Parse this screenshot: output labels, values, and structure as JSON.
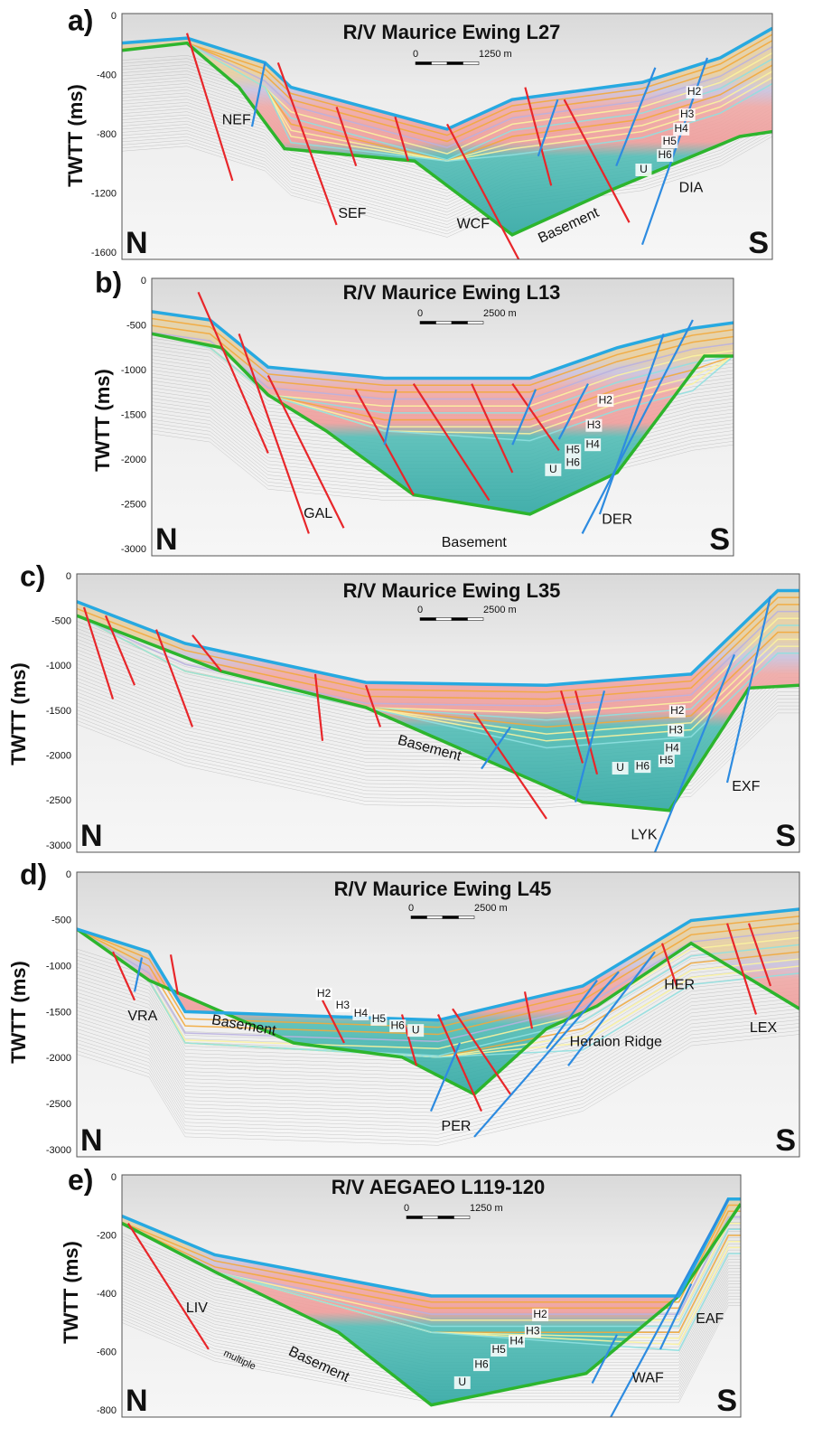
{
  "panels": [
    {
      "label": "a)",
      "title": "R/V Maurice Ewing L27",
      "scale": [
        "0",
        "1250 m"
      ],
      "y_axis_label": "TWTT (ms)",
      "y_ticks": [
        "0",
        "-400",
        "-800",
        "-1200",
        "-1600"
      ],
      "annotations": [
        "NEF",
        "SEF",
        "WCF",
        "Basement",
        "DIA",
        "H2",
        "H3",
        "H4",
        "H5",
        "H6",
        "U"
      ],
      "north": "N",
      "south": "S"
    },
    {
      "label": "b)",
      "title": "R/V Maurice Ewing L13",
      "scale": [
        "0",
        "2500 m"
      ],
      "y_axis_label": "TWTT (ms)",
      "y_ticks": [
        "0",
        "-500",
        "-1000",
        "-1500",
        "-2000",
        "-2500",
        "-3000"
      ],
      "annotations": [
        "GAL",
        "Basement",
        "DER",
        "H2",
        "H3",
        "H4",
        "H5",
        "H6",
        "U"
      ],
      "north": "N",
      "south": "S"
    },
    {
      "label": "c)",
      "title": "R/V Maurice Ewing L35",
      "scale": [
        "0",
        "2500 m"
      ],
      "y_axis_label": "TWTT (ms)",
      "y_ticks": [
        "0",
        "-500",
        "-1000",
        "-1500",
        "-2000",
        "-2500",
        "-3000"
      ],
      "annotations": [
        "Basement",
        "LYK",
        "EXF",
        "H2",
        "H3",
        "H4",
        "H5",
        "H6",
        "U"
      ],
      "north": "N",
      "south": "S"
    },
    {
      "label": "d)",
      "title": "R/V Maurice Ewing L45",
      "scale": [
        "0",
        "2500 m"
      ],
      "y_axis_label": "TWTT (ms)",
      "y_ticks": [
        "0",
        "-500",
        "-1000",
        "-1500",
        "-2000",
        "-2500",
        "-3000"
      ],
      "annotations": [
        "VRA",
        "Basement",
        "PER",
        "Heraion Ridge",
        "HER",
        "LEX",
        "H2",
        "H3",
        "H4",
        "H5",
        "H6",
        "U"
      ],
      "north": "N",
      "south": "S"
    },
    {
      "label": "e)",
      "title": "R/V AEGAEO L119-120",
      "scale": [
        "0",
        "1250 m"
      ],
      "y_axis_label": "TWTT (ms)",
      "y_ticks": [
        "0",
        "-200",
        "-400",
        "-600",
        "-800"
      ],
      "annotations": [
        "LIV",
        "multiple",
        "Basement",
        "U",
        "WAF",
        "EAF",
        "H2",
        "H3",
        "H4",
        "H5",
        "H6"
      ],
      "north": "N",
      "south": "S"
    }
  ]
}
